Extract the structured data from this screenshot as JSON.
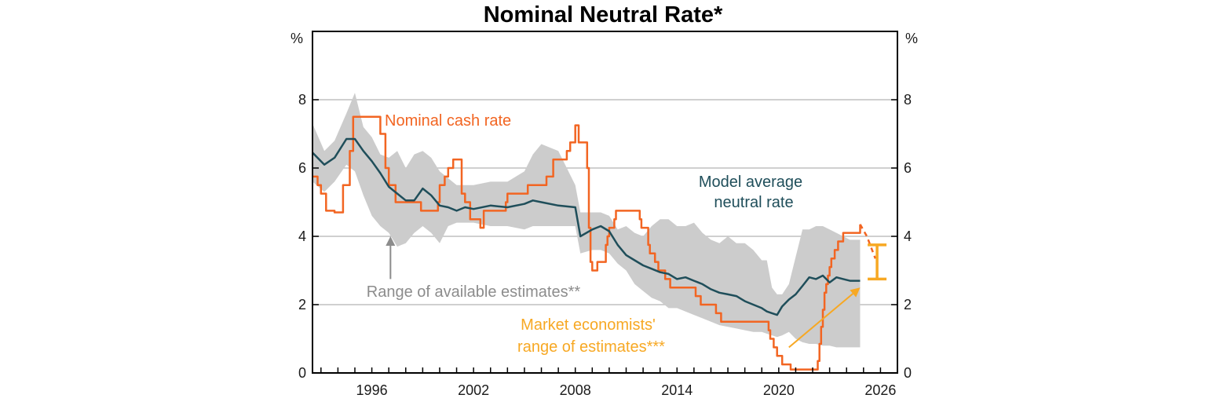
{
  "chart_data": {
    "type": "line",
    "title": "Nominal Neutral Rate*",
    "y_unit_left": "%",
    "y_unit_right": "%",
    "xlim": [
      1992.5,
      2027.0
    ],
    "ylim": [
      0,
      10
    ],
    "x_ticks": [
      1996,
      2002,
      2008,
      2014,
      2020,
      2026
    ],
    "y_ticks": [
      0,
      2,
      4,
      6,
      8
    ],
    "grid": true,
    "colors": {
      "cash_rate": "#f26522",
      "model_average": "#1f4e5a",
      "range_band": "#cccccc",
      "market_range": "#f7a823",
      "range_label": "#8c8c8c",
      "grid": "#c0c0c0",
      "axis": "#000000"
    },
    "annotations": {
      "cash_rate_label": "Nominal cash rate",
      "model_label_line1": "Model average",
      "model_label_line2": "neutral rate",
      "range_label": "Range of available estimates**",
      "market_label_line1": "Market economists'",
      "market_label_line2": "range of estimates***"
    },
    "series": [
      {
        "name": "Nominal cash rate",
        "step": true,
        "x": [
          1992.5,
          1992.8,
          1993.0,
          1993.3,
          1993.5,
          1993.8,
          1994.3,
          1994.7,
          1994.9,
          1995.1,
          1996.5,
          1996.8,
          1997.0,
          1997.4,
          1997.6,
          1998.0,
          1998.9,
          1999.9,
          2000.0,
          2000.3,
          2000.5,
          2000.8,
          2001.0,
          2001.3,
          2001.5,
          2001.8,
          2002.4,
          2002.6,
          2003.9,
          2004.0,
          2005.2,
          2006.3,
          2006.7,
          2007.5,
          2007.7,
          2008.0,
          2008.2,
          2008.7,
          2008.8,
          2008.9,
          2009.0,
          2009.3,
          2009.8,
          2009.9,
          2010.0,
          2010.3,
          2010.4,
          2010.9,
          2011.8,
          2011.9,
          2012.3,
          2012.4,
          2012.5,
          2012.7,
          2012.9,
          2013.3,
          2013.6,
          2015.1,
          2015.4,
          2016.3,
          2016.6,
          2019.4,
          2019.5,
          2019.7,
          2019.9,
          2020.2,
          2020.7,
          2022.3,
          2022.4,
          2022.5,
          2022.6,
          2022.7,
          2022.8,
          2022.9,
          2023.0,
          2023.1,
          2023.3,
          2023.5,
          2023.8,
          2024.8
        ],
        "y": [
          5.75,
          5.5,
          5.25,
          4.75,
          4.75,
          4.7,
          5.5,
          6.5,
          7.5,
          7.5,
          7.0,
          6.0,
          5.5,
          5.0,
          5.0,
          5.0,
          4.75,
          5.0,
          5.5,
          5.75,
          6.0,
          6.25,
          6.25,
          5.25,
          5.0,
          4.5,
          4.25,
          4.75,
          5.0,
          5.25,
          5.5,
          5.75,
          6.25,
          6.5,
          6.75,
          7.25,
          6.75,
          6.0,
          4.25,
          3.25,
          3.0,
          3.25,
          3.75,
          4.0,
          4.25,
          4.5,
          4.75,
          4.75,
          4.5,
          4.25,
          3.75,
          3.5,
          3.5,
          3.25,
          3.0,
          2.75,
          2.5,
          2.25,
          2.0,
          1.75,
          1.5,
          1.25,
          1.0,
          0.75,
          0.5,
          0.25,
          0.1,
          0.35,
          0.85,
          1.35,
          1.85,
          2.35,
          2.6,
          2.85,
          3.1,
          3.35,
          3.6,
          3.85,
          4.1,
          4.35
        ]
      },
      {
        "name": "Nominal cash rate (market path)",
        "x": [
          2024.8,
          2025.2,
          2025.7
        ],
        "y": [
          4.35,
          4.0,
          3.35
        ]
      },
      {
        "name": "Model average neutral rate",
        "x": [
          1992.5,
          1993.2,
          1993.8,
          1994.5,
          1995.0,
          1995.5,
          1996.0,
          1996.5,
          1997.0,
          1997.5,
          1998.0,
          1998.5,
          1999.0,
          1999.5,
          2000.0,
          2000.5,
          2001.0,
          2001.5,
          2002.0,
          2003.0,
          2004.0,
          2005.0,
          2005.5,
          2006.0,
          2007.0,
          2008.0,
          2008.3,
          2009.0,
          2009.5,
          2010.0,
          2010.5,
          2011.0,
          2011.5,
          2012.0,
          2012.5,
          2013.0,
          2013.5,
          2014.0,
          2014.5,
          2015.0,
          2015.5,
          2016.0,
          2016.5,
          2017.0,
          2017.5,
          2018.0,
          2018.5,
          2019.0,
          2019.3,
          2019.6,
          2019.9,
          2020.2,
          2020.6,
          2021.0,
          2021.4,
          2021.8,
          2022.2,
          2022.6,
          2023.0,
          2023.4,
          2023.8,
          2024.2,
          2024.8
        ],
        "y": [
          6.45,
          6.1,
          6.3,
          6.85,
          6.85,
          6.5,
          6.2,
          5.85,
          5.45,
          5.25,
          5.05,
          5.05,
          5.4,
          5.2,
          4.9,
          4.85,
          4.75,
          4.85,
          4.8,
          4.9,
          4.85,
          4.95,
          5.05,
          5.0,
          4.9,
          4.85,
          4.0,
          4.2,
          4.3,
          4.15,
          3.75,
          3.45,
          3.3,
          3.15,
          3.05,
          2.95,
          2.9,
          2.75,
          2.8,
          2.7,
          2.6,
          2.45,
          2.35,
          2.3,
          2.25,
          2.1,
          2.0,
          1.9,
          1.8,
          1.75,
          1.7,
          1.95,
          2.15,
          2.3,
          2.55,
          2.8,
          2.75,
          2.85,
          2.65,
          2.8,
          2.75,
          2.7,
          2.7
        ]
      }
    ],
    "range_band": {
      "name": "Range of available estimates**",
      "x": [
        1992.5,
        1993.2,
        1993.8,
        1994.5,
        1995.0,
        1995.5,
        1996.0,
        1996.5,
        1997.0,
        1997.5,
        1998.0,
        1998.5,
        1999.0,
        1999.5,
        2000.0,
        2000.5,
        2001.0,
        2001.5,
        2002.0,
        2003.0,
        2004.0,
        2005.0,
        2005.5,
        2006.0,
        2007.0,
        2008.0,
        2008.3,
        2009.0,
        2009.5,
        2010.0,
        2010.5,
        2011.0,
        2011.5,
        2012.0,
        2012.5,
        2013.0,
        2013.5,
        2014.0,
        2014.5,
        2015.0,
        2015.5,
        2016.0,
        2016.5,
        2017.0,
        2017.5,
        2018.0,
        2018.5,
        2019.0,
        2019.3,
        2019.6,
        2019.9,
        2020.2,
        2020.6,
        2021.0,
        2021.4,
        2021.8,
        2022.2,
        2022.6,
        2023.0,
        2023.4,
        2023.8,
        2024.2,
        2024.8
      ],
      "low": [
        5.6,
        5.3,
        5.6,
        6.1,
        5.9,
        5.2,
        4.6,
        4.3,
        4.1,
        3.7,
        3.8,
        4.1,
        4.3,
        4.1,
        3.8,
        4.3,
        4.4,
        4.4,
        4.4,
        4.3,
        4.3,
        4.2,
        4.3,
        4.3,
        4.3,
        4.3,
        3.5,
        3.6,
        3.6,
        3.5,
        3.2,
        3.0,
        2.6,
        2.4,
        2.2,
        2.1,
        1.9,
        1.9,
        1.8,
        1.7,
        1.6,
        1.5,
        1.4,
        1.35,
        1.3,
        1.25,
        1.2,
        1.2,
        1.15,
        1.1,
        1.05,
        1.1,
        1.2,
        1.0,
        0.9,
        0.85,
        0.85,
        0.8,
        0.8,
        0.75,
        0.75,
        0.75,
        0.75
      ],
      "high": [
        7.3,
        6.5,
        6.8,
        7.6,
        8.2,
        7.2,
        6.9,
        6.4,
        6.3,
        6.5,
        6.0,
        6.4,
        6.5,
        6.3,
        5.9,
        5.7,
        5.5,
        5.5,
        5.5,
        5.6,
        5.6,
        5.9,
        6.4,
        6.7,
        6.5,
        5.5,
        4.7,
        4.7,
        4.7,
        4.6,
        4.2,
        4.3,
        4.1,
        4.0,
        4.3,
        4.5,
        4.5,
        4.3,
        4.3,
        4.4,
        4.1,
        3.9,
        3.8,
        4.0,
        3.8,
        3.8,
        3.6,
        3.3,
        3.3,
        2.5,
        2.3,
        2.3,
        2.6,
        3.4,
        4.2,
        4.2,
        4.3,
        4.3,
        4.2,
        4.1,
        4.0,
        3.9,
        3.9
      ]
    },
    "market_range": {
      "x": 2025.8,
      "low": 2.75,
      "high": 3.75
    },
    "arrows": [
      {
        "from": [
          1997.1,
          2.75
        ],
        "to": [
          1997.1,
          4.0
        ],
        "color": "range_label"
      },
      {
        "from": [
          2020.6,
          0.75
        ],
        "to": [
          2024.8,
          2.5
        ],
        "color": "market_range"
      }
    ]
  }
}
